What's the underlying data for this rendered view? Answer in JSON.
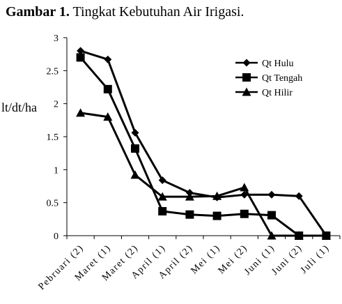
{
  "chart_data": {
    "type": "line",
    "title_prefix": "Gambar 1.",
    "title_rest": " Tingkat Kebutuhan Air Irigasi.",
    "ylabel": "lt/dt/ha",
    "xlabel": "",
    "ylim": [
      0,
      3
    ],
    "yticks": [
      "0",
      "0.5",
      "1",
      "1.5",
      "2",
      "2.5",
      "3"
    ],
    "categories": [
      "Pebruari (2)",
      "Maret (1)",
      "Maret (2)",
      "April (1)",
      "April (2)",
      "Mei (1)",
      "Mei (2)",
      "Juni (1)",
      "Juni (2)",
      "Juli (1)"
    ],
    "legend_position": "top-right",
    "grid": false,
    "series": [
      {
        "name": "Qt Hulu",
        "marker": "diamond",
        "values": [
          2.8,
          2.67,
          1.56,
          0.84,
          0.65,
          0.58,
          0.62,
          0.62,
          0.6,
          0.0
        ]
      },
      {
        "name": "Qt Tengah",
        "marker": "square",
        "values": [
          2.7,
          2.22,
          1.32,
          0.37,
          0.32,
          0.3,
          0.33,
          0.31,
          0.0,
          0.0
        ]
      },
      {
        "name": "Qt Hilir",
        "marker": "triangle",
        "values": [
          1.86,
          1.8,
          0.92,
          0.59,
          0.59,
          0.6,
          0.73,
          0.0,
          0.0,
          0.0
        ]
      }
    ]
  }
}
